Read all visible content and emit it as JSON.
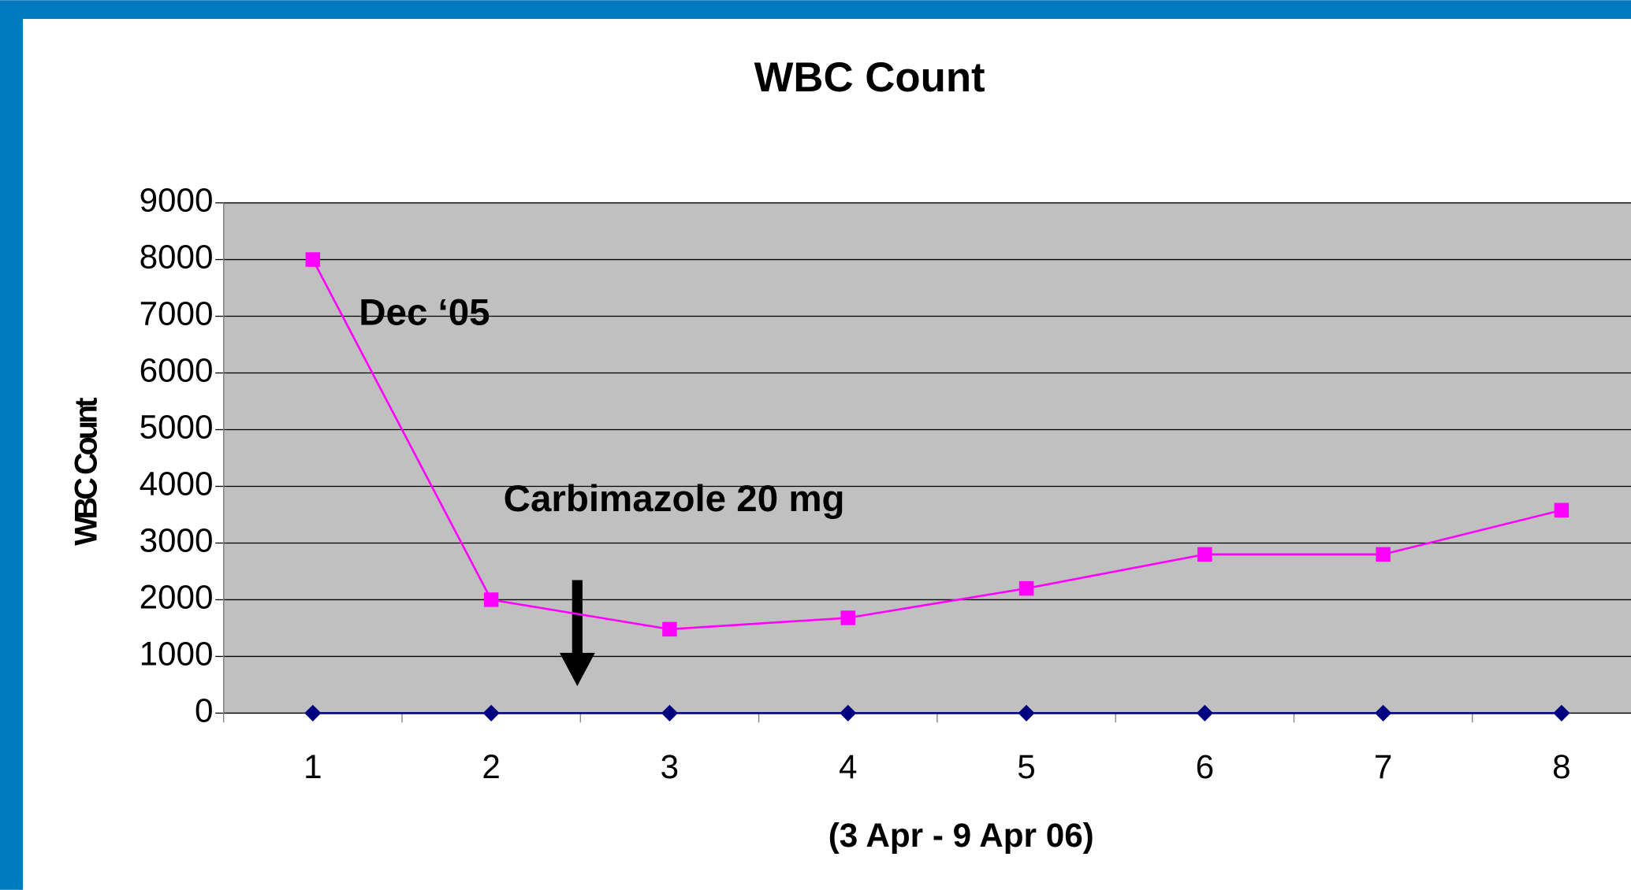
{
  "chart_data": {
    "type": "line",
    "title": "WBC Count",
    "xlabel": "(3 Apr - 9 Apr 06)",
    "ylabel": "WBC Count",
    "categories": [
      "1",
      "2",
      "3",
      "4",
      "5",
      "6",
      "7",
      "8"
    ],
    "series": [
      {
        "color": "#ff00ff",
        "marker": "square",
        "values": [
          8000,
          2000,
          1480,
          1680,
          2200,
          2800,
          2800,
          3580
        ]
      },
      {
        "color": "#000080",
        "marker": "diamond",
        "values": [
          0,
          0,
          0,
          0,
          0,
          0,
          0,
          0
        ]
      }
    ],
    "annotations": [
      "Dec ‘05",
      "Carbimazole 20 mg"
    ],
    "ylim": [
      0,
      9000
    ],
    "yticks": [
      0,
      1000,
      2000,
      3000,
      4000,
      5000,
      6000,
      7000,
      8000,
      9000
    ],
    "grid": true
  }
}
